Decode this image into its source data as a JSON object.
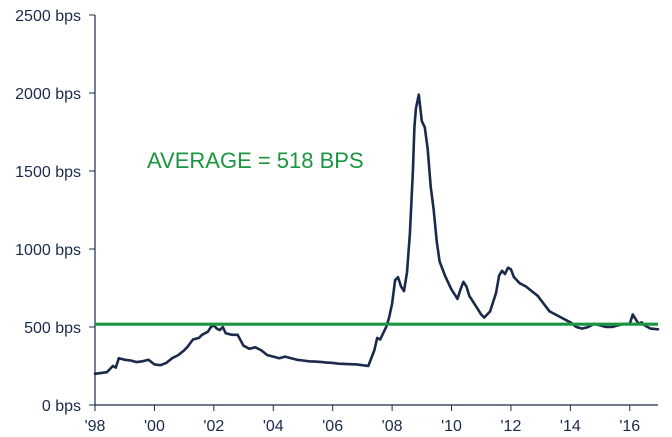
{
  "chart_data": {
    "type": "line",
    "title": "",
    "xlabel": "",
    "ylabel": "",
    "x_tick_labels": [
      "'98",
      "'00",
      "'02",
      "'04",
      "'06",
      "'08",
      "'10",
      "'12",
      "'14",
      "'16"
    ],
    "x_tick_values": [
      1998,
      2000,
      2002,
      2004,
      2006,
      2008,
      2010,
      2012,
      2014,
      2016
    ],
    "y_tick_labels": [
      "0 bps",
      "500 bps",
      "1000 bps",
      "1500 bps",
      "2000 bps",
      "2500 bps"
    ],
    "y_tick_values": [
      0,
      500,
      1000,
      1500,
      2000,
      2500
    ],
    "xlim": [
      1998,
      2016.95
    ],
    "ylim": [
      0,
      2500
    ],
    "grid": false,
    "colors": {
      "series": "#1b2a4a",
      "average": "#1a9641",
      "axis": "#1b2a4a"
    },
    "average": {
      "value": 518,
      "label": "AVERAGE = 518 BPS"
    },
    "series": [
      {
        "x": [
          1998.0,
          1998.4,
          1998.5,
          1998.6,
          1998.7,
          1998.8,
          1999.0,
          1999.2,
          1999.4,
          1999.6,
          1999.8,
          2000.0,
          2000.2,
          2000.4,
          2000.6,
          2000.8,
          2001.0,
          2001.1,
          2001.3,
          2001.5,
          2001.6,
          2001.8,
          2001.9,
          2002.0,
          2002.1,
          2002.2,
          2002.3,
          2002.4,
          2002.5,
          2002.6,
          2002.8,
          2003.0,
          2003.2,
          2003.4,
          2003.6,
          2003.8,
          2004.0,
          2004.2,
          2004.4,
          2004.6,
          2004.8,
          2005.0,
          2005.2,
          2005.4,
          2005.6,
          2005.8,
          2006.0,
          2006.2,
          2006.5,
          2006.8,
          2007.0,
          2007.2,
          2007.4,
          2007.5,
          2007.6,
          2007.7,
          2007.8,
          2007.9,
          2008.0,
          2008.1,
          2008.2,
          2008.3,
          2008.4,
          2008.5,
          2008.6,
          2008.7,
          2008.75,
          2008.8,
          2008.9,
          2009.0,
          2009.1,
          2009.2,
          2009.3,
          2009.4,
          2009.5,
          2009.6,
          2009.8,
          2010.0,
          2010.1,
          2010.2,
          2010.3,
          2010.4,
          2010.5,
          2010.6,
          2010.8,
          2011.0,
          2011.1,
          2011.3,
          2011.5,
          2011.6,
          2011.7,
          2011.8,
          2011.9,
          2012.0,
          2012.1,
          2012.3,
          2012.5,
          2012.7,
          2012.9,
          2013.1,
          2013.3,
          2013.5,
          2013.7,
          2013.9,
          2014.0,
          2014.2,
          2014.4,
          2014.6,
          2014.8,
          2015.0,
          2015.2,
          2015.4,
          2015.6,
          2015.8,
          2016.0,
          2016.1,
          2016.2,
          2016.3,
          2016.4,
          2016.5,
          2016.7,
          2016.95
        ],
        "y": [
          200,
          210,
          230,
          250,
          240,
          300,
          290,
          285,
          275,
          280,
          290,
          260,
          255,
          270,
          300,
          320,
          350,
          370,
          420,
          430,
          450,
          470,
          500,
          510,
          490,
          480,
          500,
          460,
          455,
          450,
          450,
          380,
          360,
          370,
          350,
          320,
          310,
          300,
          310,
          300,
          290,
          285,
          280,
          278,
          276,
          272,
          270,
          265,
          262,
          260,
          255,
          250,
          350,
          430,
          420,
          460,
          500,
          560,
          650,
          800,
          820,
          760,
          730,
          850,
          1100,
          1500,
          1780,
          1900,
          1990,
          1820,
          1780,
          1640,
          1400,
          1250,
          1050,
          920,
          820,
          740,
          710,
          680,
          740,
          790,
          760,
          700,
          640,
          580,
          560,
          600,
          720,
          830,
          860,
          840,
          880,
          870,
          820,
          780,
          760,
          730,
          700,
          650,
          600,
          580,
          560,
          540,
          530,
          500,
          490,
          500,
          520,
          510,
          500,
          500,
          510,
          520,
          520,
          580,
          550,
          520,
          530,
          510,
          490,
          485
        ]
      }
    ]
  }
}
